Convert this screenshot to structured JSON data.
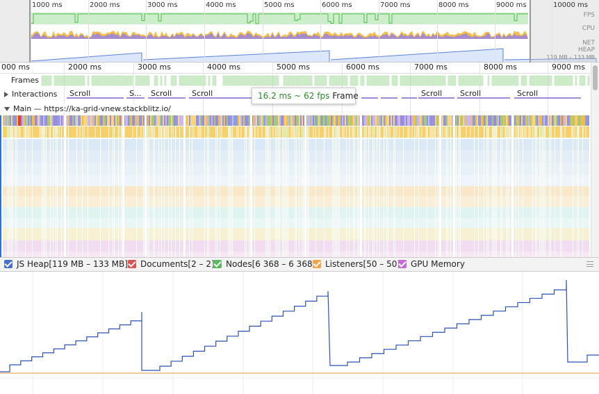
{
  "overview": {
    "ticks": [
      "1000 ms",
      "2000 ms",
      "3000 ms",
      "4000 ms",
      "5000 ms",
      "6000 ms",
      "7000 ms",
      "8000 ms",
      "9000 ms",
      "10000 ms"
    ],
    "labels": {
      "fps": "FPS",
      "cpu": "CPU",
      "net": "NET",
      "heap": "HEAP",
      "heap_range": "119 MB – 133 MB"
    },
    "colors": {
      "fps_fill": "#cdeecb",
      "fps_line": "#4eb94a",
      "cpu_yellow": "#f2bd4a",
      "cpu_purple": "#9d86d9",
      "heap_fill": "#dde7fb",
      "heap_line": "#5a82d6"
    }
  },
  "ruler": {
    "ticks": [
      "000 ms",
      "2000 ms",
      "3000 ms",
      "4000 ms",
      "5000 ms",
      "6000 ms",
      "7000 ms",
      "8000 ms",
      "9000 ms"
    ]
  },
  "tracks": {
    "frames": {
      "label": "Frames"
    },
    "interactions": {
      "label": "Interactions",
      "segments": [
        "Scroll",
        "S...",
        "Scroll",
        "Scroll",
        "Scroll",
        "Scroll",
        "Scroll"
      ]
    },
    "main": {
      "label": "Main — https://ka-grid-vnew.stackblitz.io/"
    }
  },
  "tooltip": {
    "fps_text": "16.2 ms ~ 62 fps",
    "kind": "Frame"
  },
  "legend": {
    "items": [
      {
        "label": "JS Heap[119 MB – 133 MB]",
        "color": "#4a6fcf"
      },
      {
        "label": "Documents[2 – 2]",
        "color": "#d9534f"
      },
      {
        "label": "Nodes[6 368 – 6 368]",
        "color": "#5cb85c"
      },
      {
        "label": "Listeners[50 – 50]",
        "color": "#f0a64b"
      },
      {
        "label": "GPU Memory",
        "color": "#c96bd6"
      }
    ]
  },
  "counters": {
    "heap_color": "#2950b3",
    "listeners_color": "#e8952f"
  }
}
